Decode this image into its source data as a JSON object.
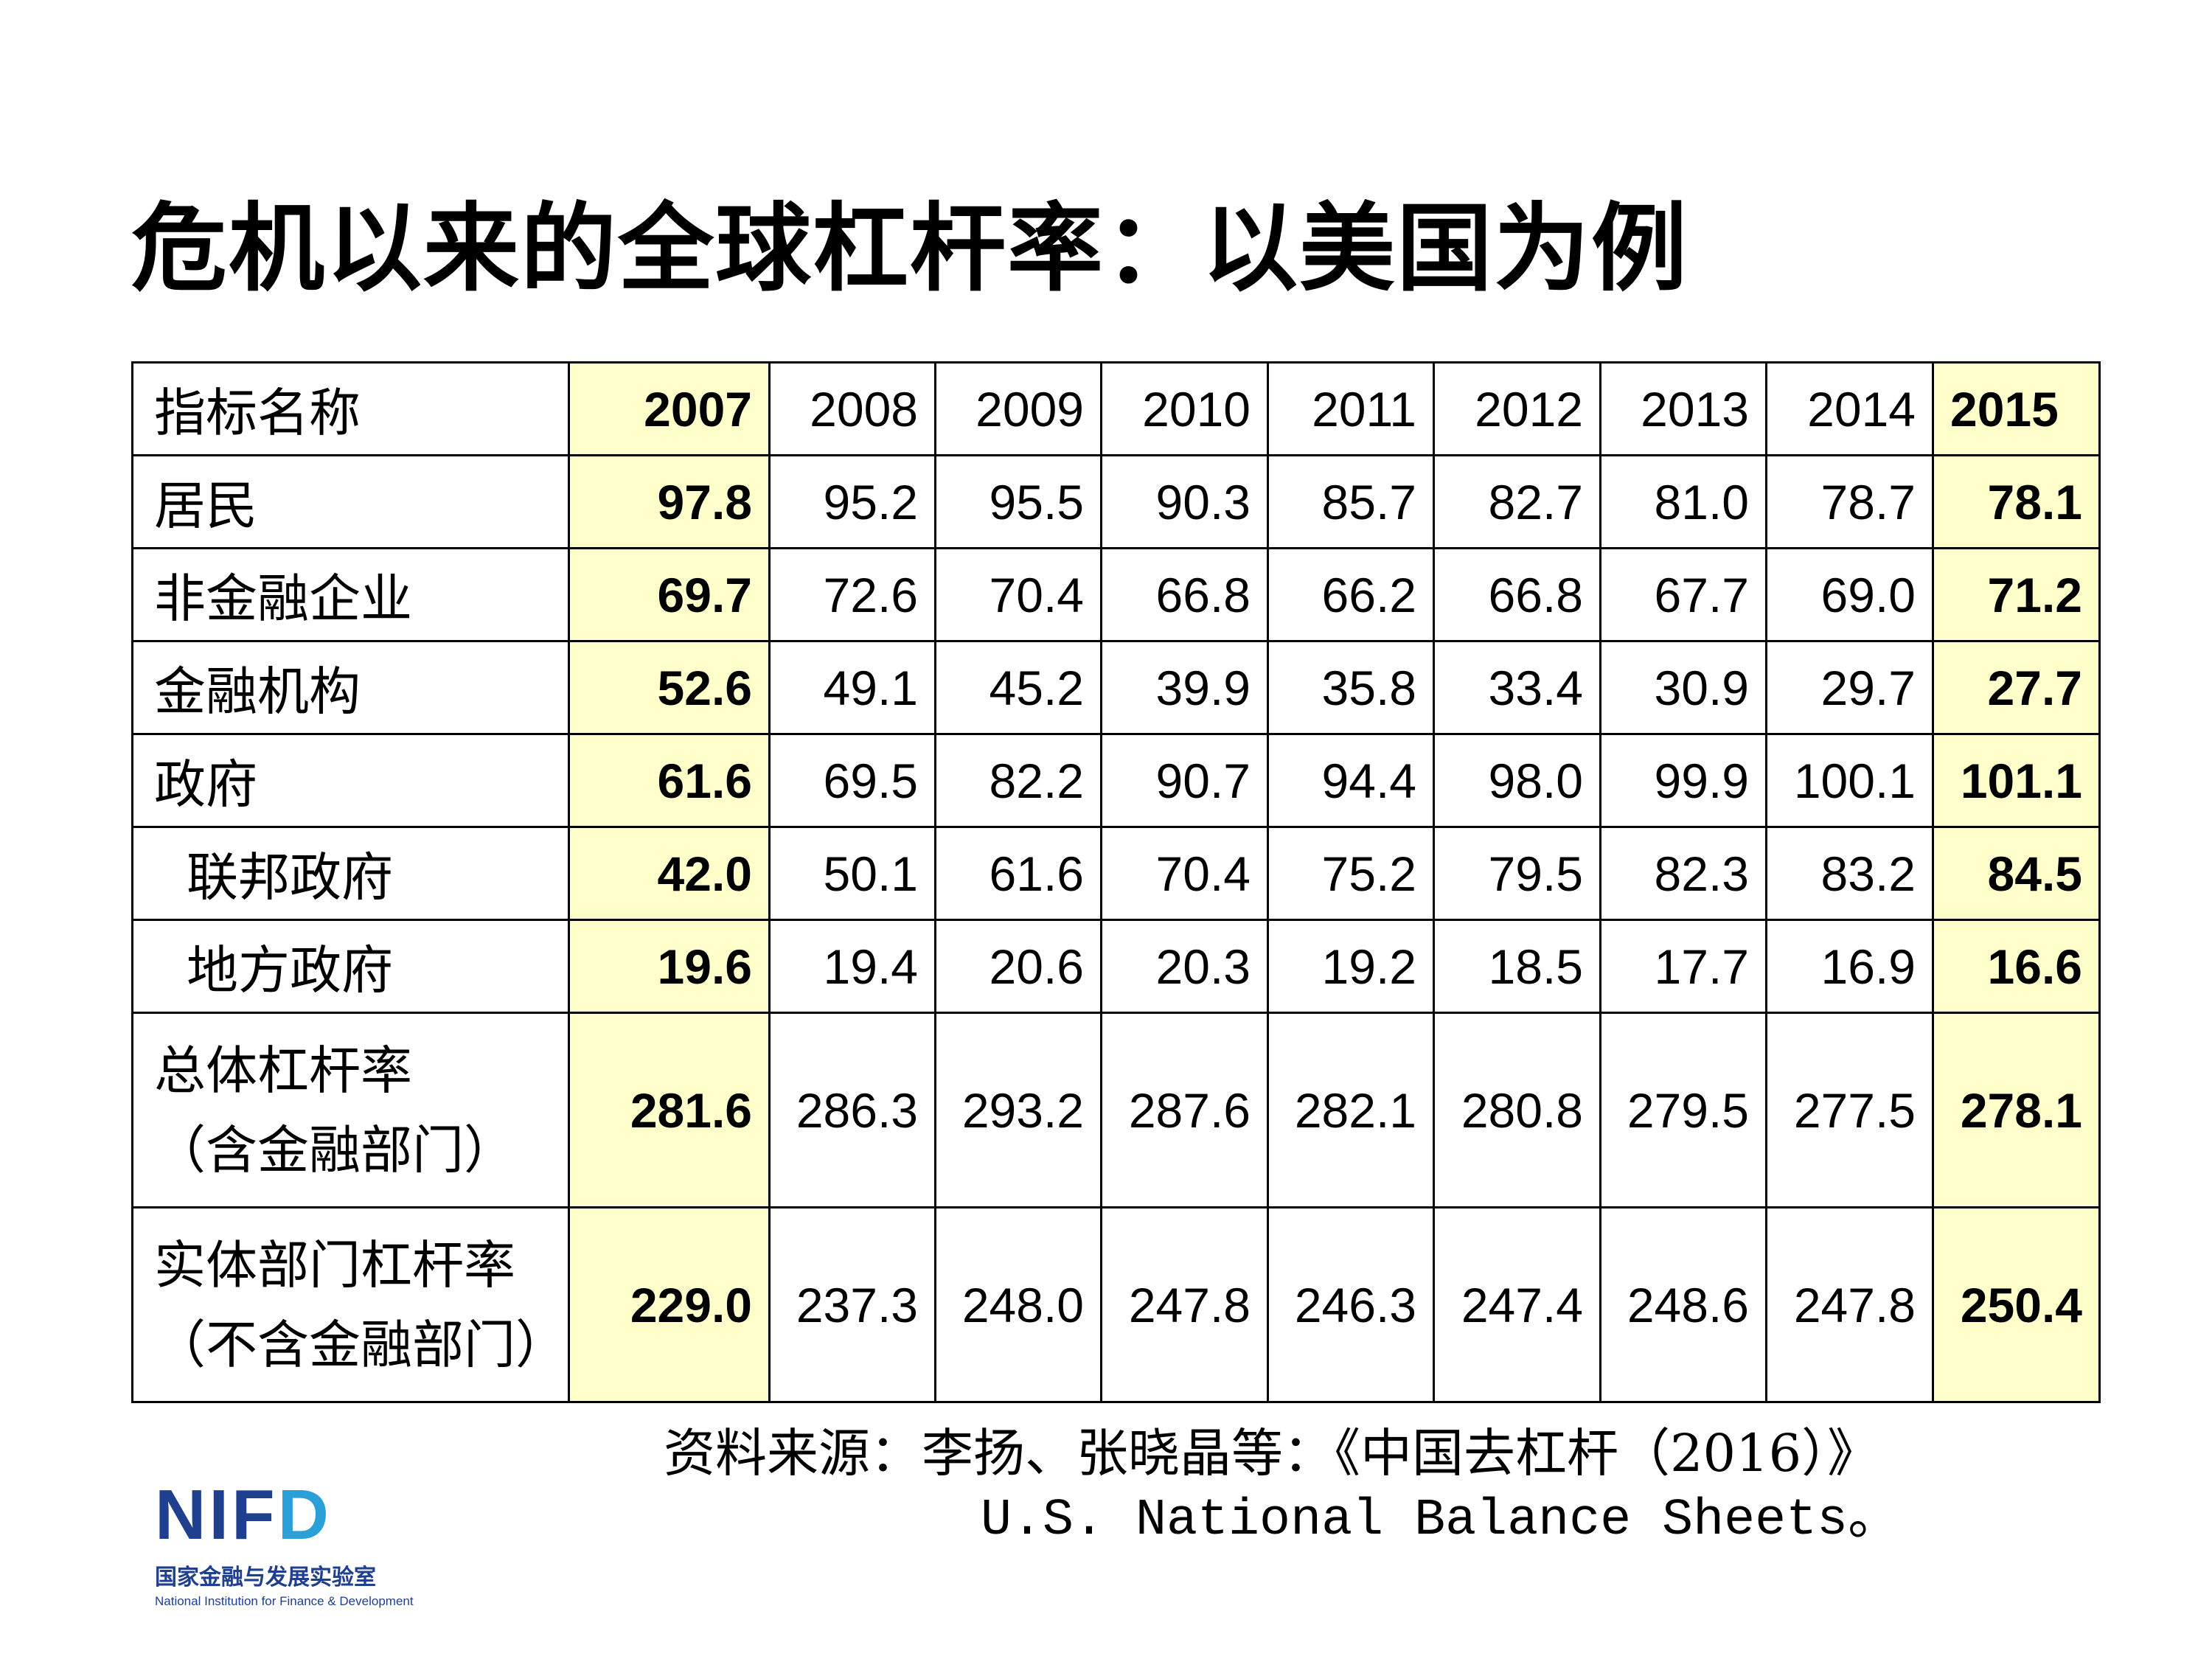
{
  "title": "危机以来的全球杠杆率：以美国为例",
  "table": {
    "header_label": "指标名称",
    "years": [
      "2007",
      "2008",
      "2009",
      "2010",
      "2011",
      "2012",
      "2013",
      "2014",
      "2015"
    ],
    "rows": [
      {
        "label": "居民",
        "values": [
          "97.8",
          "95.2",
          "95.5",
          "90.3",
          "85.7",
          "82.7",
          "81.0",
          "78.7",
          "78.1"
        ]
      },
      {
        "label": "非金融企业",
        "values": [
          "69.7",
          "72.6",
          "70.4",
          "66.8",
          "66.2",
          "66.8",
          "67.7",
          "69.0",
          "71.2"
        ]
      },
      {
        "label": "金融机构",
        "values": [
          "52.6",
          "49.1",
          "45.2",
          "39.9",
          "35.8",
          "33.4",
          "30.9",
          "29.7",
          "27.7"
        ]
      },
      {
        "label": "政府",
        "values": [
          "61.6",
          "69.5",
          "82.2",
          "90.7",
          "94.4",
          "98.0",
          "99.9",
          "100.1",
          "101.1"
        ]
      },
      {
        "label": "联邦政府",
        "values": [
          "42.0",
          "50.1",
          "61.6",
          "70.4",
          "75.2",
          "79.5",
          "82.3",
          "83.2",
          "84.5"
        ]
      },
      {
        "label": "地方政府",
        "values": [
          "19.6",
          "19.4",
          "20.6",
          "20.3",
          "19.2",
          "18.5",
          "17.7",
          "16.9",
          "16.6"
        ]
      },
      {
        "label": "总体杠杆率",
        "label2": "（含金融部门）",
        "values": [
          "281.6",
          "286.3",
          "293.2",
          "287.6",
          "282.1",
          "280.8",
          "279.5",
          "277.5",
          "278.1"
        ]
      },
      {
        "label": "实体部门杠杆率",
        "label2": "（不含金融部门）",
        "values": [
          "229.0",
          "237.3",
          "248.0",
          "247.8",
          "246.3",
          "247.4",
          "248.6",
          "247.8",
          "250.4"
        ]
      }
    ]
  },
  "source": {
    "line1": "资料来源：李扬、张晓晶等：《中国去杠杆（2016）》",
    "line2": "U.S. National Balance Sheets。"
  },
  "logo": {
    "mark_n": "N",
    "mark_i": "I",
    "mark_f": "F",
    "mark_d": "D",
    "cn": "国家金融与发展实验室",
    "en": "National Institution for Finance & Development"
  },
  "colors": {
    "highlight": "#ffffcc",
    "logo_blue": "#1f3f8f",
    "logo_light": "#2a9fd8"
  }
}
